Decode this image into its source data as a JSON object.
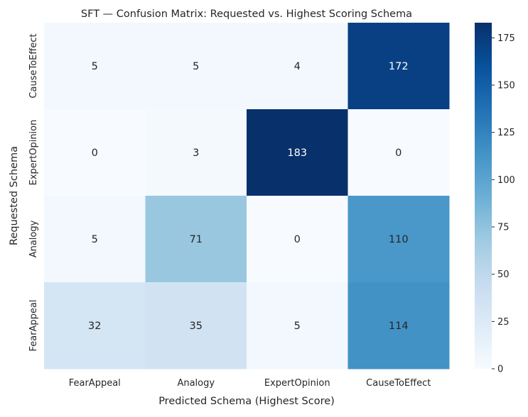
{
  "chart_data": {
    "type": "heatmap",
    "title": "SFT — Confusion Matrix: Requested vs. Highest Scoring Schema",
    "xlabel": "Predicted Schema (Highest Score)",
    "ylabel": "Requested Schema",
    "x_categories": [
      "FearAppeal",
      "Analogy",
      "ExpertOpinion",
      "CauseToEffect"
    ],
    "y_categories": [
      "CauseToEffect",
      "ExpertOpinion",
      "Analogy",
      "FearAppeal"
    ],
    "values": [
      [
        5,
        5,
        4,
        172
      ],
      [
        0,
        3,
        183,
        0
      ],
      [
        5,
        71,
        0,
        110
      ],
      [
        32,
        35,
        5,
        114
      ]
    ],
    "colorbar": {
      "min": 0,
      "max": 183,
      "ticks": [
        0,
        25,
        50,
        75,
        100,
        125,
        150,
        175
      ],
      "colormap": "Blues"
    }
  }
}
